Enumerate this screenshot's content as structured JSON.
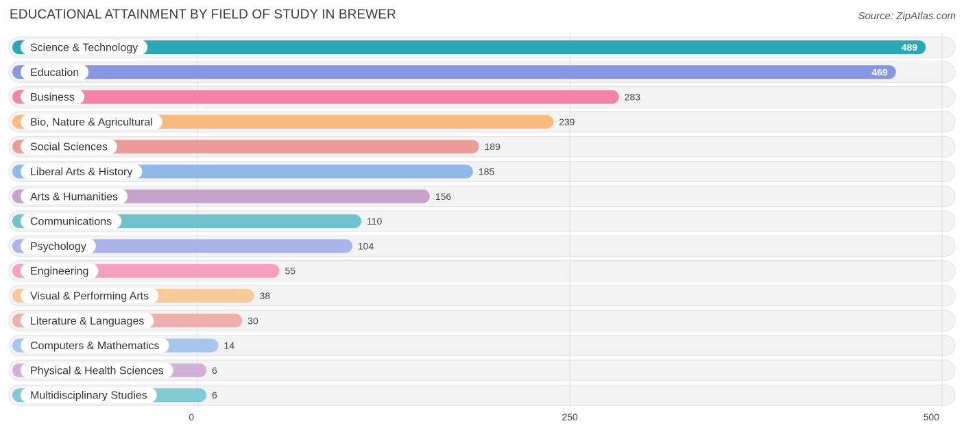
{
  "header": {
    "title": "EDUCATIONAL ATTAINMENT BY FIELD OF STUDY IN BREWER",
    "source": "Source: ZipAtlas.com"
  },
  "chart_data": {
    "type": "bar",
    "orientation": "horizontal",
    "title": "EDUCATIONAL ATTAINMENT BY FIELD OF STUDY IN BREWER",
    "xlabel": "",
    "ylabel": "",
    "xlim": [
      0,
      500
    ],
    "ticks": [
      0,
      250,
      500
    ],
    "grid": true,
    "categories": [
      "Science & Technology",
      "Education",
      "Business",
      "Bio, Nature & Agricultural",
      "Social Sciences",
      "Liberal Arts & History",
      "Arts & Humanities",
      "Communications",
      "Psychology",
      "Engineering",
      "Visual & Performing Arts",
      "Literature & Languages",
      "Computers & Mathematics",
      "Physical & Health Sciences",
      "Multidisciplinary Studies"
    ],
    "values": [
      489,
      469,
      283,
      239,
      189,
      185,
      156,
      110,
      104,
      55,
      38,
      30,
      14,
      6,
      6
    ],
    "colors": [
      "#2aa8b5",
      "#8696e0",
      "#f282a8",
      "#f9bb7d",
      "#eb9b98",
      "#90b8e8",
      "#c5a2cc",
      "#6fc3cb",
      "#aab3ea",
      "#f5a0bf",
      "#f9c99a",
      "#f0aeac",
      "#a6c6ee",
      "#d1b0d8",
      "#7ecbd3"
    ]
  }
}
